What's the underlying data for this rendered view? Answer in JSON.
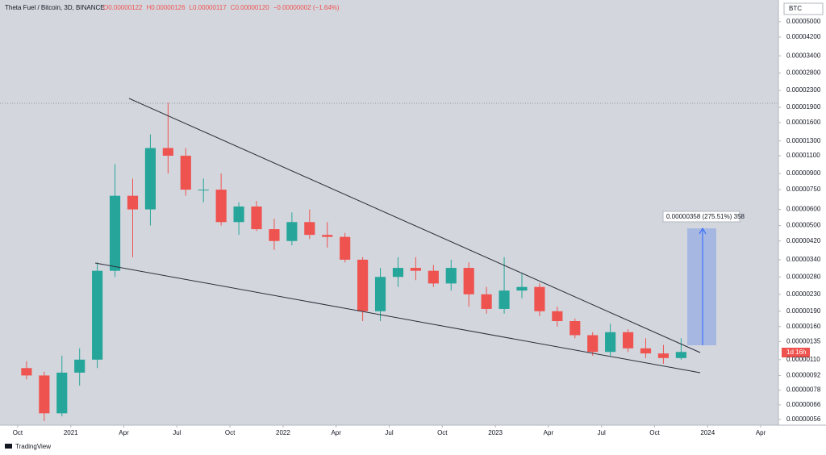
{
  "chart_data": {
    "type": "candlestick",
    "title": "Theta Fuel / Bitcoin, 3D, BINANCE",
    "legend_values": [
      "O0.00000122",
      "H0.00000126",
      "L0.00000117",
      "C0.00000120",
      "−0.00000002 (−1.64%)"
    ],
    "currency": "BTC",
    "countdown": "1d 16h",
    "measure_label": "0.00000358 (275.51%) 358",
    "brand": "TradingView",
    "log_scale": true,
    "up_color": "#26a69a",
    "down_color": "#ef5350",
    "x": [
      "2020-10",
      "2020-11",
      "2020-12",
      "2021-01",
      "2021-02",
      "2021-03",
      "2021-04",
      "2021-05",
      "2021-06",
      "2021-07",
      "2021-08",
      "2021-09",
      "2021-10",
      "2021-11",
      "2021-12",
      "2022-01",
      "2022-02",
      "2022-03",
      "2022-04",
      "2022-05",
      "2022-06",
      "2022-07",
      "2022-08",
      "2022-09",
      "2022-10",
      "2022-11",
      "2022-12",
      "2023-01",
      "2023-02",
      "2023-03",
      "2023-04",
      "2023-05",
      "2023-06",
      "2023-07",
      "2023-08",
      "2023-09",
      "2023-10",
      "2023-11"
    ],
    "open": [
      1e-06,
      9.2e-07,
      6e-07,
      9.5e-07,
      1.1e-06,
      3e-06,
      7e-06,
      6e-06,
      1.2e-05,
      1.1e-05,
      7.5e-06,
      7.5e-06,
      5.2e-06,
      6.2e-06,
      4.8e-06,
      4.2e-06,
      5.2e-06,
      4.5e-06,
      4.4e-06,
      3.4e-06,
      1.9e-06,
      2.8e-06,
      3.1e-06,
      3e-06,
      2.6e-06,
      3.1e-06,
      2.3e-06,
      1.95e-06,
      2.4e-06,
      2.5e-06,
      1.9e-06,
      1.7e-06,
      1.45e-06,
      1.2e-06,
      1.5e-06,
      1.25e-06,
      1.18e-06,
      1.12e-06
    ],
    "high": [
      1.08e-06,
      9.6e-07,
      1.15e-06,
      1.25e-06,
      3.3e-06,
      1e-05,
      8.5e-06,
      1.4e-05,
      2e-05,
      1.2e-05,
      8.5e-06,
      9e-06,
      6.5e-06,
      6.6e-06,
      5.4e-06,
      5.8e-06,
      6e-06,
      5.2e-06,
      4.6e-06,
      3.5e-06,
      3.1e-06,
      3.5e-06,
      3.5e-06,
      3.2e-06,
      3.4e-06,
      3.3e-06,
      2.5e-06,
      3.5e-06,
      2.9e-06,
      2.6e-06,
      2e-06,
      1.75e-06,
      1.5e-06,
      1.65e-06,
      1.55e-06,
      1.4e-06,
      1.3e-06,
      1.4e-06
    ],
    "low": [
      8.8e-07,
      5.5e-07,
      5.8e-07,
      8.2e-07,
      1e-06,
      2.8e-06,
      3.5e-06,
      5e-06,
      9e-06,
      7e-06,
      6.5e-06,
      5e-06,
      4.5e-06,
      4.7e-06,
      3.8e-06,
      4e-06,
      4.3e-06,
      3.9e-06,
      3.3e-06,
      1.7e-06,
      1.7e-06,
      2.5e-06,
      2.7e-06,
      2.5e-06,
      2.4e-06,
      2e-06,
      1.85e-06,
      1.85e-06,
      2.2e-06,
      1.8e-06,
      1.6e-06,
      1.4e-06,
      1.15e-06,
      1.15e-06,
      1.2e-06,
      1.12e-06,
      1.05e-06,
      1.1e-06
    ],
    "close": [
      9.2e-07,
      6e-07,
      9.5e-07,
      1.1e-06,
      3e-06,
      7e-06,
      6e-06,
      1.2e-05,
      1.1e-05,
      7.5e-06,
      7.5e-06,
      5.2e-06,
      6.2e-06,
      4.8e-06,
      4.2e-06,
      5.2e-06,
      4.5e-06,
      4.4e-06,
      3.4e-06,
      1.9e-06,
      2.8e-06,
      3.1e-06,
      3e-06,
      2.6e-06,
      3.1e-06,
      2.3e-06,
      1.95e-06,
      2.4e-06,
      2.5e-06,
      1.9e-06,
      1.7e-06,
      1.45e-06,
      1.2e-06,
      1.5e-06,
      1.25e-06,
      1.18e-06,
      1.12e-06,
      1.2e-06
    ],
    "xlim": [
      "2020-09",
      "2024-05"
    ],
    "xticks": [
      {
        "value": "2020-10",
        "label": "Oct"
      },
      {
        "value": "2021-01",
        "label": "2021"
      },
      {
        "value": "2021-04",
        "label": "Apr"
      },
      {
        "value": "2021-07",
        "label": "Jul"
      },
      {
        "value": "2021-10",
        "label": "Oct"
      },
      {
        "value": "2022-01",
        "label": "2022"
      },
      {
        "value": "2022-04",
        "label": "Apr"
      },
      {
        "value": "2022-07",
        "label": "Jul"
      },
      {
        "value": "2022-10",
        "label": "Oct"
      },
      {
        "value": "2023-01",
        "label": "2023"
      },
      {
        "value": "2023-04",
        "label": "Apr"
      },
      {
        "value": "2023-07",
        "label": "Jul"
      },
      {
        "value": "2023-10",
        "label": "Oct"
      },
      {
        "value": "2024-01",
        "label": "2024"
      },
      {
        "value": "2024-04",
        "label": "Apr"
      }
    ],
    "ylim": [
      5.25e-07,
      6.1e-05
    ],
    "yticks": [
      {
        "value": 5e-05,
        "label": "0.00005000"
      },
      {
        "value": 4.2e-05,
        "label": "0.00004200"
      },
      {
        "value": 3.4e-05,
        "label": "0.00003400"
      },
      {
        "value": 2.8e-05,
        "label": "0.00002800"
      },
      {
        "value": 2.3e-05,
        "label": "0.00002300"
      },
      {
        "value": 1.9e-05,
        "label": "0.00001900"
      },
      {
        "value": 1.6e-05,
        "label": "0.00001600"
      },
      {
        "value": 1.3e-05,
        "label": "0.00001300"
      },
      {
        "value": 1.1e-05,
        "label": "0.00001100"
      },
      {
        "value": 9e-06,
        "label": "0.00000900"
      },
      {
        "value": 7.5e-06,
        "label": "0.00000750"
      },
      {
        "value": 6e-06,
        "label": "0.00000600"
      },
      {
        "value": 5e-06,
        "label": "0.00000500"
      },
      {
        "value": 4.2e-06,
        "label": "0.00000420"
      },
      {
        "value": 3.4e-06,
        "label": "0.00000340"
      },
      {
        "value": 2.8e-06,
        "label": "0.00000280"
      },
      {
        "value": 2.3e-06,
        "label": "0.00000230"
      },
      {
        "value": 1.9e-06,
        "label": "0.00000190"
      },
      {
        "value": 1.6e-06,
        "label": "0.00000160"
      },
      {
        "value": 1.35e-06,
        "label": "0.00000135"
      },
      {
        "value": 1.1e-06,
        "label": "0.00000110"
      },
      {
        "value": 9.2e-07,
        "label": "0.00000092"
      },
      {
        "value": 7.8e-07,
        "label": "0.00000078"
      },
      {
        "value": 6.6e-07,
        "label": "0.00000066"
      },
      {
        "value": 5.6e-07,
        "label": "0.00000056"
      }
    ]
  }
}
